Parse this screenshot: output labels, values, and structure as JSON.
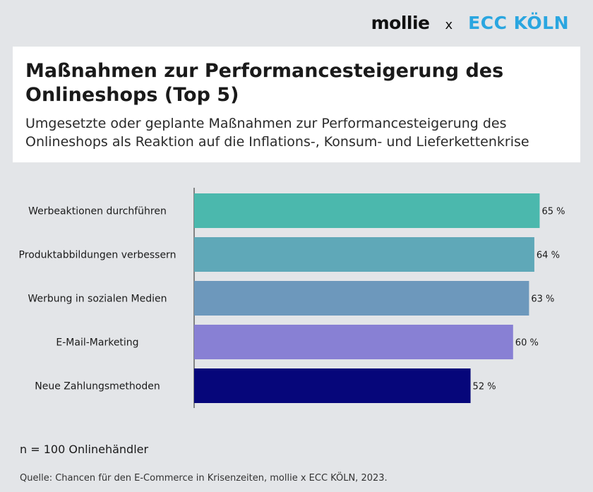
{
  "header": {
    "logo_left": "mollie",
    "logo_separator": "x",
    "logo_right": "ECC KÖLN"
  },
  "source_note": "n = 100 Onlinehändler",
  "source": "Quelle: Chancen für den E-Commerce in Krisenzeiten, mollie x ECC KÖLN, 2023.",
  "chart_data": {
    "type": "bar",
    "orientation": "horizontal",
    "title": "Maßnahmen zur Performancesteigerung des Onlineshops (Top 5)",
    "subtitle": "Umgesetzte oder geplante Maßnahmen zur Performancesteigerung des Onlineshops als Reaktion auf die Inflations-, Konsum- und Lieferkettenkrise",
    "categories": [
      "Werbeaktionen durchführen",
      "Produktabbildungen verbessern",
      "Werbung in sozialen Medien",
      "E-Mail-Marketing",
      "Neue Zahlungsmethoden"
    ],
    "values": [
      65,
      64,
      63,
      60,
      52
    ],
    "value_labels": [
      "65 %",
      "64 %",
      "63 %",
      "60 %",
      "52 %"
    ],
    "colors": [
      "#4bb8ad",
      "#5fa8b8",
      "#6d98bc",
      "#8880d4",
      "#06067a"
    ],
    "xlim": [
      0,
      100
    ],
    "grid": false,
    "legend": "none"
  }
}
